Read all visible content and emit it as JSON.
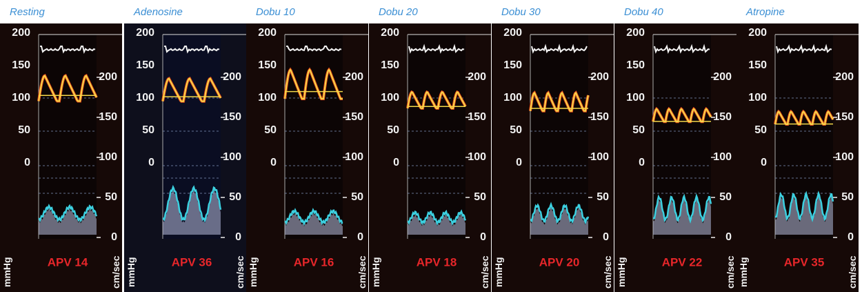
{
  "panels": [
    {
      "label": "Resting",
      "apv": "APV 14"
    },
    {
      "label": "Adenosine",
      "apv": "APV 36"
    },
    {
      "label": "Dobu 10",
      "apv": "APV 16"
    },
    {
      "label": "Dobu 20",
      "apv": "APV 18"
    },
    {
      "label": "Dobu 30",
      "apv": "APV 20"
    },
    {
      "label": "Dobu 40",
      "apv": "APV 22"
    },
    {
      "label": "Atropine",
      "apv": "APV 35"
    }
  ],
  "left_axis": {
    "unit": "mmHg",
    "ticks": [
      "200",
      "150",
      "100",
      "50",
      "0"
    ]
  },
  "right_axis": {
    "unit": "cm/sec",
    "ticks": [
      "200",
      "150",
      "100",
      "50",
      "0"
    ]
  }
}
